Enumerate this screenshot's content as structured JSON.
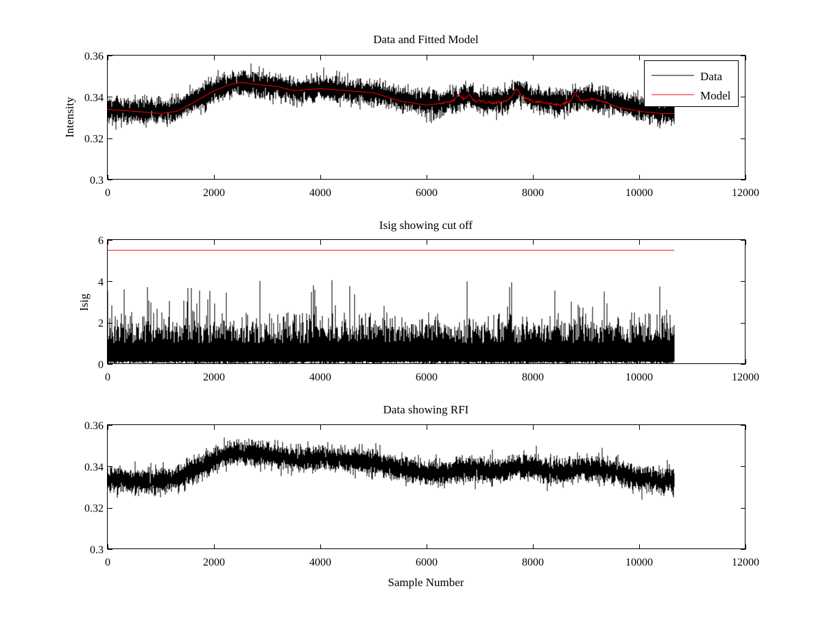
{
  "chart_data": [
    {
      "type": "line",
      "title": "Data and Fitted Model",
      "xlabel": "",
      "ylabel": "Intensity",
      "xlim": [
        0,
        12000
      ],
      "ylim": [
        0.3,
        0.36
      ],
      "xticks": [
        0,
        2000,
        4000,
        6000,
        8000,
        10000,
        12000
      ],
      "xtick_labels": [
        "0",
        "2000",
        "4000",
        "6000",
        "8000",
        "10000",
        "12000"
      ],
      "yticks": [
        0.3,
        0.32,
        0.34,
        0.36
      ],
      "ytick_labels": [
        "0.3",
        "0.32",
        "0.34",
        "0.36"
      ],
      "grid": false,
      "legend": {
        "position": "top-right",
        "entries": [
          "Data",
          "Model"
        ]
      },
      "series": [
        {
          "name": "Data",
          "color": "#000000",
          "style": "noisy",
          "x": [
            0,
            500,
            1000,
            1300,
            1600,
            2000,
            2300,
            2500,
            2800,
            3200,
            3500,
            4000,
            4500,
            5000,
            5500,
            6000,
            6300,
            6600,
            6800,
            7000,
            7500,
            7700,
            8000,
            8500,
            8800,
            9200,
            9600,
            10000,
            10400,
            10660
          ],
          "y": [
            0.334,
            0.333,
            0.333,
            0.334,
            0.338,
            0.343,
            0.346,
            0.347,
            0.346,
            0.345,
            0.343,
            0.344,
            0.343,
            0.342,
            0.339,
            0.337,
            0.337,
            0.339,
            0.341,
            0.338,
            0.338,
            0.343,
            0.339,
            0.337,
            0.34,
            0.339,
            0.337,
            0.334,
            0.333,
            0.333
          ],
          "noise_amplitude": 0.006,
          "samples": 10660
        },
        {
          "name": "Model",
          "color": "#ff0000",
          "style": "smooth",
          "x": [
            0,
            500,
            1000,
            1300,
            1600,
            2000,
            2300,
            2500,
            2800,
            3200,
            3500,
            4000,
            4500,
            5000,
            5500,
            6000,
            6300,
            6500,
            6600,
            6700,
            6800,
            6900,
            7000,
            7300,
            7500,
            7600,
            7700,
            7800,
            8000,
            8300,
            8500,
            8700,
            8800,
            8900,
            9100,
            9300,
            9600,
            10000,
            10400,
            10660
          ],
          "y": [
            0.334,
            0.333,
            0.332,
            0.333,
            0.337,
            0.343,
            0.346,
            0.347,
            0.346,
            0.345,
            0.343,
            0.344,
            0.343,
            0.342,
            0.338,
            0.336,
            0.337,
            0.338,
            0.341,
            0.339,
            0.341,
            0.338,
            0.338,
            0.337,
            0.338,
            0.34,
            0.344,
            0.34,
            0.338,
            0.337,
            0.336,
            0.338,
            0.342,
            0.338,
            0.339,
            0.338,
            0.335,
            0.333,
            0.332,
            0.332
          ]
        }
      ]
    },
    {
      "type": "line",
      "title": "Isig showing cut off",
      "xlabel": "",
      "ylabel": "Isig",
      "xlim": [
        0,
        12000
      ],
      "ylim": [
        0,
        6
      ],
      "xticks": [
        0,
        2000,
        4000,
        6000,
        8000,
        10000,
        12000
      ],
      "xtick_labels": [
        "0",
        "2000",
        "4000",
        "6000",
        "8000",
        "10000",
        "12000"
      ],
      "yticks": [
        0,
        2,
        4,
        6
      ],
      "ytick_labels": [
        "0",
        "2",
        "4",
        "6"
      ],
      "grid": false,
      "series": [
        {
          "color": "#000000",
          "style": "spiky",
          "x": [
            0,
            10660
          ],
          "y": [
            0.8,
            0.8
          ],
          "typical_max": 2.2,
          "peak_max": 4.1,
          "samples": 10660
        },
        {
          "color": "#ff0000",
          "style": "flat",
          "x": [
            0,
            10660
          ],
          "y": [
            5.5,
            5.5
          ]
        }
      ]
    },
    {
      "type": "line",
      "title": "Data showing RFI",
      "xlabel": "Sample Number",
      "ylabel": "",
      "xlim": [
        0,
        12000
      ],
      "ylim": [
        0.3,
        0.36
      ],
      "xticks": [
        0,
        2000,
        4000,
        6000,
        8000,
        10000,
        12000
      ],
      "xtick_labels": [
        "0",
        "2000",
        "4000",
        "6000",
        "8000",
        "10000",
        "12000"
      ],
      "yticks": [
        0.3,
        0.32,
        0.34,
        0.36
      ],
      "ytick_labels": [
        "0.3",
        "0.32",
        "0.34",
        "0.36"
      ],
      "grid": false,
      "series": [
        {
          "color": "#000000",
          "style": "noisy",
          "x": [
            0,
            500,
            1000,
            1300,
            1600,
            2000,
            2300,
            2500,
            2800,
            3200,
            3500,
            4000,
            4500,
            5000,
            5500,
            6000,
            6300,
            6600,
            6800,
            7000,
            7500,
            7700,
            8000,
            8500,
            8800,
            9200,
            9600,
            10000,
            10400,
            10660
          ],
          "y": [
            0.334,
            0.333,
            0.333,
            0.334,
            0.338,
            0.343,
            0.346,
            0.347,
            0.346,
            0.345,
            0.343,
            0.344,
            0.343,
            0.342,
            0.339,
            0.337,
            0.337,
            0.338,
            0.339,
            0.338,
            0.338,
            0.34,
            0.339,
            0.337,
            0.339,
            0.339,
            0.337,
            0.334,
            0.333,
            0.333
          ],
          "noise_amplitude": 0.006,
          "samples": 10660
        }
      ]
    }
  ]
}
